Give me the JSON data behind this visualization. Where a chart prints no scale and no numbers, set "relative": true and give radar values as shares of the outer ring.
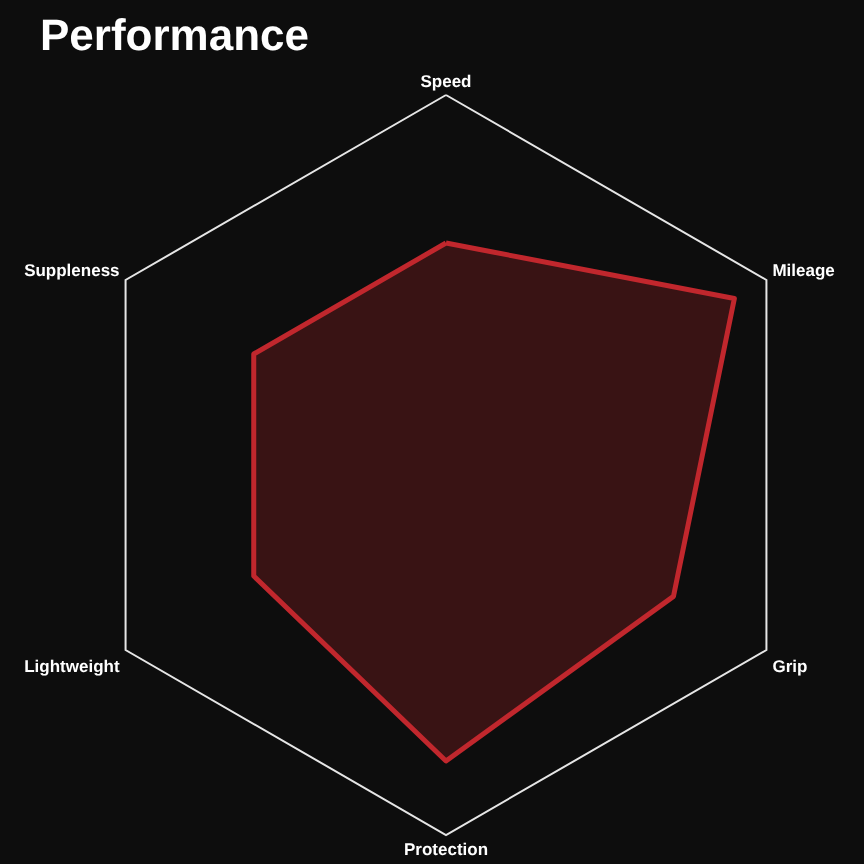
{
  "chart_data": {
    "type": "radar",
    "title": "Performance",
    "categories": [
      "Speed",
      "Mileage",
      "Grip",
      "Protection",
      "Lightweight",
      "Suppleness"
    ],
    "relative": true,
    "series": [
      {
        "color": "#c1272d",
        "values": [
          0.6,
          0.9,
          0.71,
          0.8,
          0.6,
          0.6
        ]
      }
    ]
  }
}
